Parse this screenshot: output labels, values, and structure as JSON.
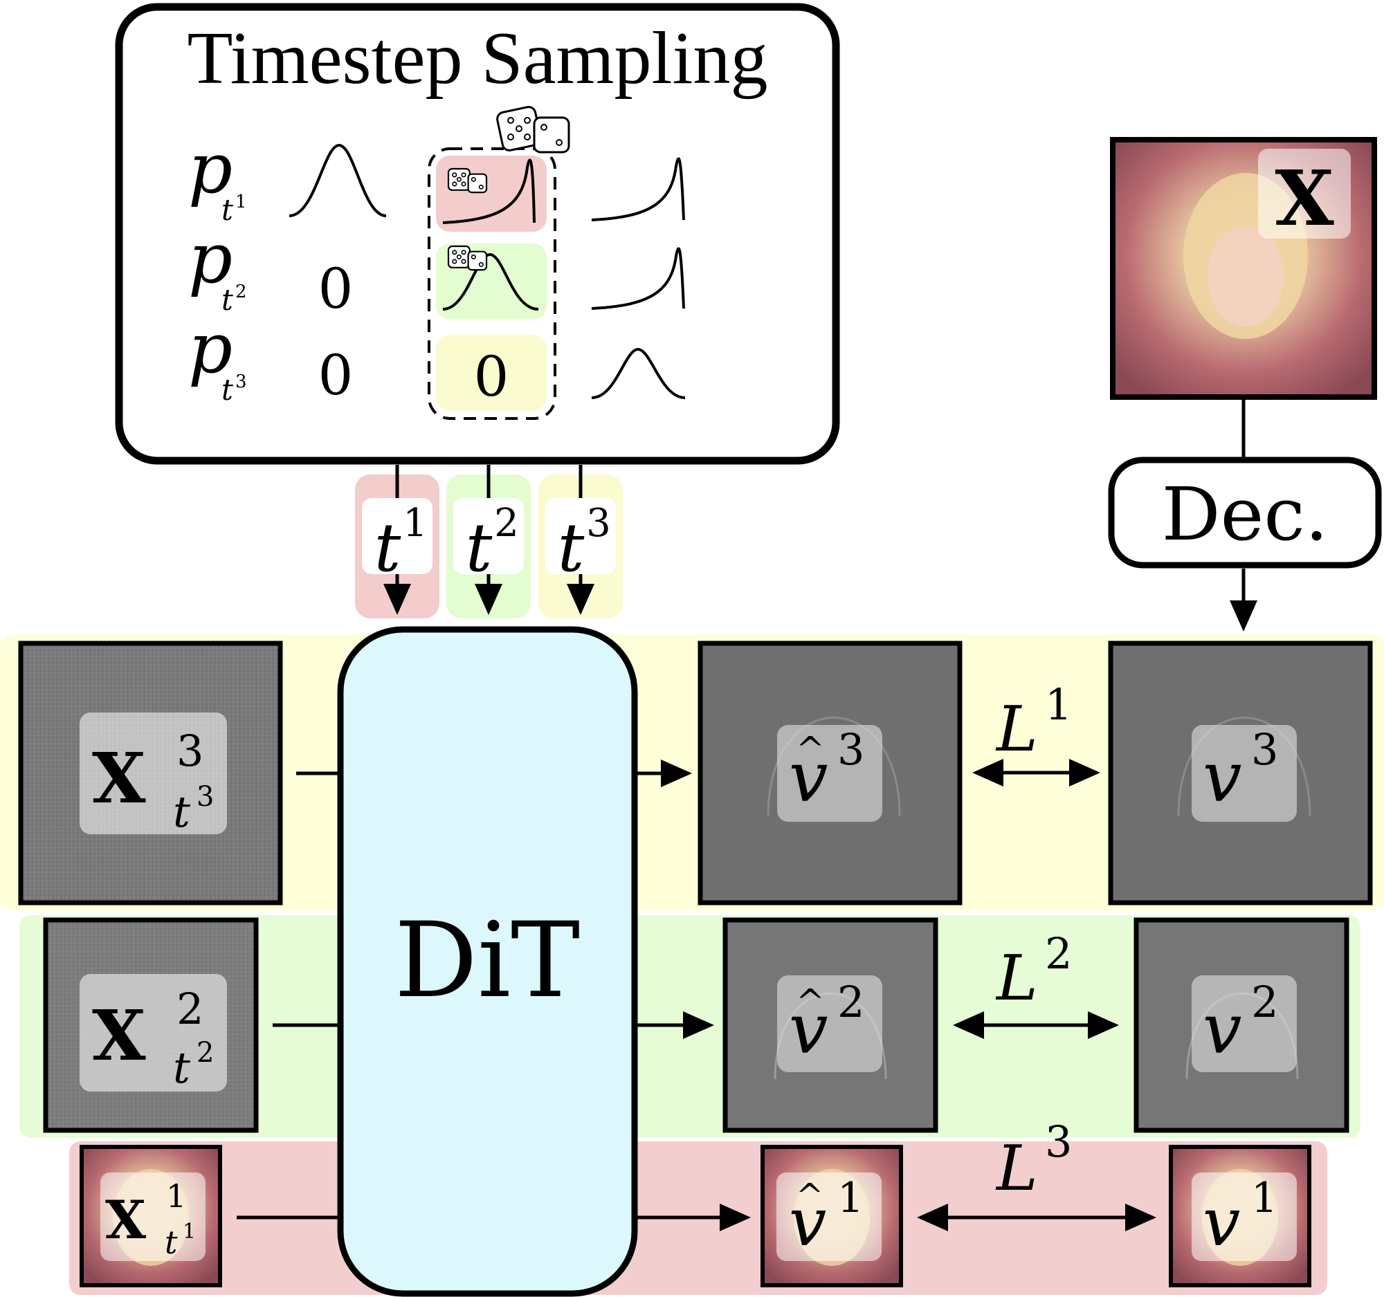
{
  "sampler": {
    "title": "Timestep Sampling",
    "rows": [
      {
        "label": "p",
        "sub": "t",
        "sup": "1",
        "zero": ""
      },
      {
        "label": "p",
        "sub": "t",
        "sup": "2",
        "zero": "0"
      },
      {
        "label": "p",
        "sub": "t",
        "sup": "3",
        "zero": "0"
      }
    ],
    "selected_zero": "0"
  },
  "timesteps": [
    {
      "base": "t",
      "sup": "1",
      "color": "#f3cccc"
    },
    {
      "base": "t",
      "sup": "2",
      "color": "#e3fcd0"
    },
    {
      "base": "t",
      "sup": "3",
      "color": "#fbfbd0"
    }
  ],
  "model": {
    "label": "DiT",
    "color": "#dcf8fd"
  },
  "decoder": {
    "label": "Dec."
  },
  "clean_image": {
    "label": "X"
  },
  "levels": [
    {
      "input_base": "X",
      "input_sup": "3",
      "input_sub": "t",
      "input_sub_sup": "3",
      "pred_base": "v",
      "pred_sup": "3",
      "target_base": "v",
      "target_sup": "3",
      "loss_base": "L",
      "loss_sup": "1",
      "band_color": "#fefed9"
    },
    {
      "input_base": "X",
      "input_sup": "2",
      "input_sub": "t",
      "input_sub_sup": "2",
      "pred_base": "v",
      "pred_sup": "2",
      "target_base": "v",
      "target_sup": "2",
      "loss_base": "L",
      "loss_sup": "2",
      "band_color": "#e6fcd6"
    },
    {
      "input_base": "X",
      "input_sup": "1",
      "input_sub": "t",
      "input_sub_sup": "1",
      "pred_base": "v",
      "pred_sup": "1",
      "target_base": "v",
      "target_sup": "1",
      "loss_base": "L",
      "loss_sup": "3",
      "band_color": "#f3cece"
    }
  ]
}
